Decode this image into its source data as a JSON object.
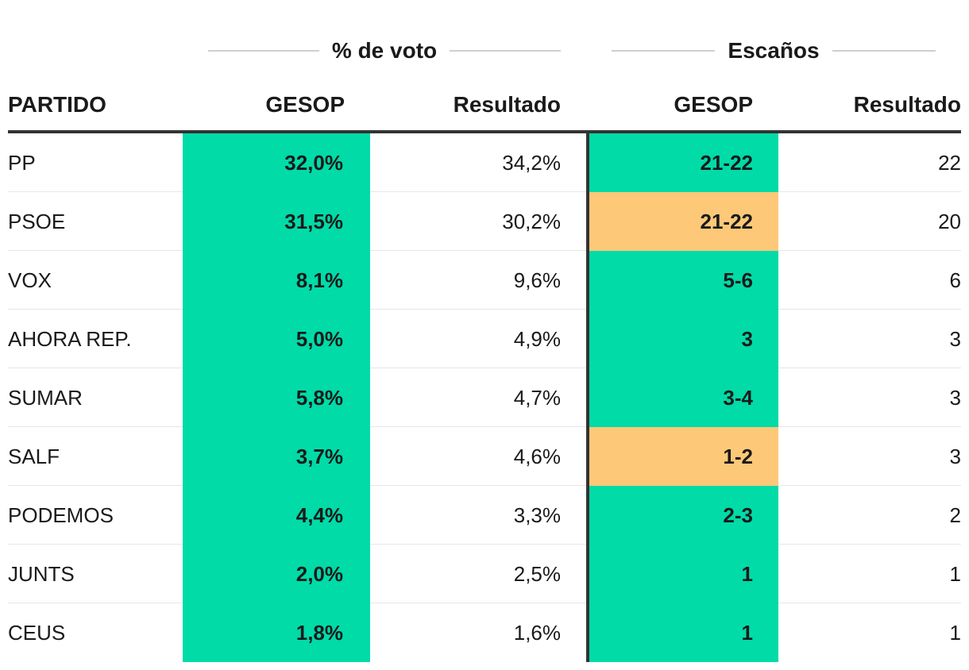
{
  "chart_data": {
    "type": "table",
    "colors": {
      "match": "#00dba8",
      "miss": "#fdc978"
    },
    "groups": {
      "vote": "% de voto",
      "seats": "Escaños"
    },
    "headers": {
      "party": "PARTIDO",
      "vote_gesop": "GESOP",
      "vote_result": "Resultado",
      "seats_gesop": "GESOP",
      "seats_result": "Resultado"
    },
    "rows": [
      {
        "party": "PP",
        "vote_gesop": "32,0%",
        "vote_result": "34,2%",
        "seats_gesop": "21-22",
        "seats_result": "22",
        "seats_hit": true
      },
      {
        "party": "PSOE",
        "vote_gesop": "31,5%",
        "vote_result": "30,2%",
        "seats_gesop": "21-22",
        "seats_result": "20",
        "seats_hit": false
      },
      {
        "party": "VOX",
        "vote_gesop": "8,1%",
        "vote_result": "9,6%",
        "seats_gesop": "5-6",
        "seats_result": "6",
        "seats_hit": true
      },
      {
        "party": "AHORA REP.",
        "vote_gesop": "5,0%",
        "vote_result": "4,9%",
        "seats_gesop": "3",
        "seats_result": "3",
        "seats_hit": true
      },
      {
        "party": "SUMAR",
        "vote_gesop": "5,8%",
        "vote_result": "4,7%",
        "seats_gesop": "3-4",
        "seats_result": "3",
        "seats_hit": true
      },
      {
        "party": "SALF",
        "vote_gesop": "3,7%",
        "vote_result": "4,6%",
        "seats_gesop": "1-2",
        "seats_result": "3",
        "seats_hit": false
      },
      {
        "party": "PODEMOS",
        "vote_gesop": "4,4%",
        "vote_result": "3,3%",
        "seats_gesop": "2-3",
        "seats_result": "2",
        "seats_hit": true
      },
      {
        "party": "JUNTS",
        "vote_gesop": "2,0%",
        "vote_result": "2,5%",
        "seats_gesop": "1",
        "seats_result": "1",
        "seats_hit": true
      },
      {
        "party": "CEUS",
        "vote_gesop": "1,8%",
        "vote_result": "1,6%",
        "seats_gesop": "1",
        "seats_result": "1",
        "seats_hit": true
      }
    ]
  }
}
